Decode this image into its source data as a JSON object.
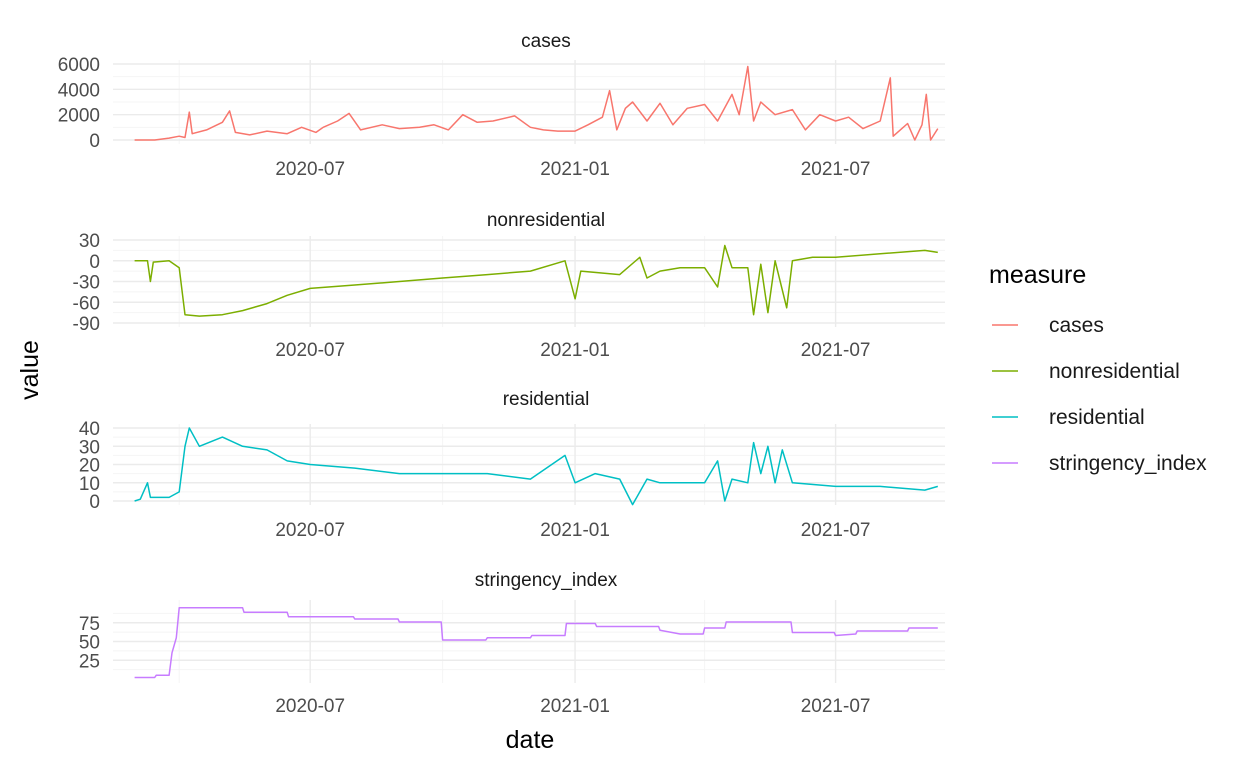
{
  "chart_data": {
    "type": "line",
    "layout": "faceted-vertical",
    "xlabel": "date",
    "ylabel": "value",
    "x_range": [
      "2020-02-15",
      "2021-09-15"
    ],
    "x_tick_labels": [
      "2020-07",
      "2021-01",
      "2021-07"
    ],
    "x_tick_dates": [
      "2020-07-01",
      "2021-01-01",
      "2021-07-01"
    ],
    "grid": true,
    "legend": {
      "title": "measure",
      "placement": "right",
      "entries": [
        {
          "label": "cases",
          "color": "#F8766D"
        },
        {
          "label": "nonresidential",
          "color": "#7CAE00"
        },
        {
          "label": "residential",
          "color": "#00BFC4"
        },
        {
          "label": "stringency_index",
          "color": "#C77CFF"
        }
      ]
    },
    "panels": [
      {
        "title": "cases",
        "color": "#F8766D",
        "ylim": [
          0,
          6000
        ],
        "y_ticks": [
          0,
          2000,
          4000,
          6000
        ],
        "y_tick_labels": [
          "0",
          "2000",
          "4000",
          "6000"
        ],
        "points": [
          [
            "2020-03-01",
            0
          ],
          [
            "2020-03-15",
            0
          ],
          [
            "2020-03-25",
            150
          ],
          [
            "2020-04-01",
            300
          ],
          [
            "2020-04-05",
            200
          ],
          [
            "2020-04-08",
            2200
          ],
          [
            "2020-04-10",
            500
          ],
          [
            "2020-04-20",
            800
          ],
          [
            "2020-05-01",
            1400
          ],
          [
            "2020-05-06",
            2300
          ],
          [
            "2020-05-10",
            600
          ],
          [
            "2020-05-20",
            400
          ],
          [
            "2020-06-01",
            700
          ],
          [
            "2020-06-15",
            500
          ],
          [
            "2020-06-25",
            1000
          ],
          [
            "2020-07-05",
            600
          ],
          [
            "2020-07-10",
            1000
          ],
          [
            "2020-07-20",
            1500
          ],
          [
            "2020-07-28",
            2100
          ],
          [
            "2020-08-05",
            800
          ],
          [
            "2020-08-20",
            1200
          ],
          [
            "2020-09-01",
            900
          ],
          [
            "2020-09-15",
            1000
          ],
          [
            "2020-09-25",
            1200
          ],
          [
            "2020-10-05",
            800
          ],
          [
            "2020-10-15",
            2000
          ],
          [
            "2020-10-25",
            1400
          ],
          [
            "2020-11-05",
            1500
          ],
          [
            "2020-11-20",
            1900
          ],
          [
            "2020-12-01",
            1000
          ],
          [
            "2020-12-10",
            800
          ],
          [
            "2020-12-20",
            700
          ],
          [
            "2021-01-01",
            700
          ],
          [
            "2021-01-10",
            1200
          ],
          [
            "2021-01-20",
            1800
          ],
          [
            "2021-01-25",
            3900
          ],
          [
            "2021-01-30",
            800
          ],
          [
            "2021-02-05",
            2500
          ],
          [
            "2021-02-10",
            3000
          ],
          [
            "2021-02-20",
            1500
          ],
          [
            "2021-03-01",
            2900
          ],
          [
            "2021-03-10",
            1200
          ],
          [
            "2021-03-20",
            2500
          ],
          [
            "2021-04-01",
            2800
          ],
          [
            "2021-04-10",
            1500
          ],
          [
            "2021-04-20",
            3600
          ],
          [
            "2021-04-25",
            2000
          ],
          [
            "2021-05-01",
            5800
          ],
          [
            "2021-05-05",
            1500
          ],
          [
            "2021-05-10",
            3000
          ],
          [
            "2021-05-20",
            2000
          ],
          [
            "2021-06-01",
            2400
          ],
          [
            "2021-06-10",
            800
          ],
          [
            "2021-06-20",
            2000
          ],
          [
            "2021-07-01",
            1500
          ],
          [
            "2021-07-10",
            1800
          ],
          [
            "2021-07-20",
            900
          ],
          [
            "2021-08-01",
            1500
          ],
          [
            "2021-08-08",
            4900
          ],
          [
            "2021-08-10",
            300
          ],
          [
            "2021-08-20",
            1300
          ],
          [
            "2021-08-25",
            0
          ],
          [
            "2021-08-30",
            1200
          ],
          [
            "2021-09-02",
            3600
          ],
          [
            "2021-09-05",
            0
          ],
          [
            "2021-09-10",
            900
          ]
        ]
      },
      {
        "title": "nonresidential",
        "color": "#7CAE00",
        "ylim": [
          -90,
          30
        ],
        "y_ticks": [
          -90,
          -60,
          -30,
          0,
          30
        ],
        "y_tick_labels": [
          "-90",
          "-60",
          "-30",
          "0",
          "30"
        ],
        "points": [
          [
            "2020-03-01",
            0
          ],
          [
            "2020-03-10",
            0
          ],
          [
            "2020-03-12",
            -30
          ],
          [
            "2020-03-14",
            -2
          ],
          [
            "2020-03-25",
            0
          ],
          [
            "2020-04-01",
            -10
          ],
          [
            "2020-04-05",
            -78
          ],
          [
            "2020-04-15",
            -80
          ],
          [
            "2020-05-01",
            -78
          ],
          [
            "2020-05-15",
            -72
          ],
          [
            "2020-06-01",
            -62
          ],
          [
            "2020-06-15",
            -50
          ],
          [
            "2020-07-01",
            -40
          ],
          [
            "2020-08-01",
            -35
          ],
          [
            "2020-09-01",
            -30
          ],
          [
            "2020-10-01",
            -25
          ],
          [
            "2020-11-01",
            -20
          ],
          [
            "2020-12-01",
            -15
          ],
          [
            "2020-12-25",
            0
          ],
          [
            "2021-01-01",
            -55
          ],
          [
            "2021-01-05",
            -15
          ],
          [
            "2021-02-01",
            -20
          ],
          [
            "2021-02-15",
            5
          ],
          [
            "2021-02-20",
            -25
          ],
          [
            "2021-03-01",
            -15
          ],
          [
            "2021-03-15",
            -10
          ],
          [
            "2021-04-01",
            -10
          ],
          [
            "2021-04-10",
            -38
          ],
          [
            "2021-04-15",
            22
          ],
          [
            "2021-04-20",
            -10
          ],
          [
            "2021-05-01",
            -10
          ],
          [
            "2021-05-05",
            -78
          ],
          [
            "2021-05-10",
            -5
          ],
          [
            "2021-05-15",
            -75
          ],
          [
            "2021-05-20",
            0
          ],
          [
            "2021-05-28",
            -68
          ],
          [
            "2021-06-01",
            0
          ],
          [
            "2021-06-15",
            5
          ],
          [
            "2021-07-01",
            5
          ],
          [
            "2021-08-01",
            10
          ],
          [
            "2021-09-01",
            15
          ],
          [
            "2021-09-10",
            12
          ]
        ]
      },
      {
        "title": "residential",
        "color": "#00BFC4",
        "ylim": [
          0,
          40
        ],
        "y_ticks": [
          0,
          10,
          20,
          30,
          40
        ],
        "y_tick_labels": [
          "0",
          "10",
          "20",
          "30",
          "40"
        ],
        "points": [
          [
            "2020-03-01",
            0
          ],
          [
            "2020-03-05",
            1
          ],
          [
            "2020-03-10",
            10
          ],
          [
            "2020-03-12",
            2
          ],
          [
            "2020-03-25",
            2
          ],
          [
            "2020-04-01",
            5
          ],
          [
            "2020-04-05",
            30
          ],
          [
            "2020-04-08",
            40
          ],
          [
            "2020-04-15",
            30
          ],
          [
            "2020-05-01",
            35
          ],
          [
            "2020-05-15",
            30
          ],
          [
            "2020-06-01",
            28
          ],
          [
            "2020-06-15",
            22
          ],
          [
            "2020-07-01",
            20
          ],
          [
            "2020-08-01",
            18
          ],
          [
            "2020-09-01",
            15
          ],
          [
            "2020-10-01",
            15
          ],
          [
            "2020-11-01",
            15
          ],
          [
            "2020-12-01",
            12
          ],
          [
            "2020-12-25",
            25
          ],
          [
            "2021-01-01",
            10
          ],
          [
            "2021-01-15",
            15
          ],
          [
            "2021-02-01",
            12
          ],
          [
            "2021-02-10",
            -2
          ],
          [
            "2021-02-20",
            12
          ],
          [
            "2021-03-01",
            10
          ],
          [
            "2021-04-01",
            10
          ],
          [
            "2021-04-10",
            22
          ],
          [
            "2021-04-15",
            0
          ],
          [
            "2021-04-20",
            12
          ],
          [
            "2021-05-01",
            10
          ],
          [
            "2021-05-05",
            32
          ],
          [
            "2021-05-10",
            15
          ],
          [
            "2021-05-15",
            30
          ],
          [
            "2021-05-20",
            10
          ],
          [
            "2021-05-25",
            28
          ],
          [
            "2021-06-01",
            10
          ],
          [
            "2021-07-01",
            8
          ],
          [
            "2021-08-01",
            8
          ],
          [
            "2021-09-01",
            6
          ],
          [
            "2021-09-10",
            8
          ]
        ]
      },
      {
        "title": "stringency_index",
        "color": "#C77CFF",
        "ylim": [
          0,
          100
        ],
        "y_ticks": [
          25,
          50,
          75
        ],
        "y_tick_labels": [
          "25",
          "50",
          "75"
        ],
        "points": [
          [
            "2020-03-01",
            2
          ],
          [
            "2020-03-15",
            2
          ],
          [
            "2020-03-16",
            5
          ],
          [
            "2020-03-25",
            5
          ],
          [
            "2020-03-27",
            35
          ],
          [
            "2020-03-30",
            55
          ],
          [
            "2020-04-01",
            95
          ],
          [
            "2020-05-15",
            95
          ],
          [
            "2020-05-16",
            89
          ],
          [
            "2020-06-15",
            89
          ],
          [
            "2020-06-16",
            83
          ],
          [
            "2020-07-31",
            83
          ],
          [
            "2020-08-01",
            80
          ],
          [
            "2020-08-31",
            80
          ],
          [
            "2020-09-01",
            76
          ],
          [
            "2020-09-30",
            76
          ],
          [
            "2020-10-01",
            52
          ],
          [
            "2020-10-31",
            52
          ],
          [
            "2020-11-01",
            55
          ],
          [
            "2020-12-01",
            55
          ],
          [
            "2020-12-02",
            58
          ],
          [
            "2020-12-25",
            58
          ],
          [
            "2020-12-26",
            74
          ],
          [
            "2021-01-15",
            74
          ],
          [
            "2021-01-16",
            70
          ],
          [
            "2021-02-28",
            70
          ],
          [
            "2021-03-01",
            65
          ],
          [
            "2021-03-15",
            60
          ],
          [
            "2021-03-31",
            60
          ],
          [
            "2021-04-01",
            68
          ],
          [
            "2021-04-15",
            68
          ],
          [
            "2021-04-16",
            76
          ],
          [
            "2021-05-31",
            76
          ],
          [
            "2021-06-01",
            62
          ],
          [
            "2021-06-30",
            62
          ],
          [
            "2021-07-01",
            58
          ],
          [
            "2021-07-15",
            60
          ],
          [
            "2021-07-16",
            64
          ],
          [
            "2021-08-20",
            64
          ],
          [
            "2021-08-21",
            68
          ],
          [
            "2021-09-10",
            68
          ]
        ]
      }
    ]
  }
}
